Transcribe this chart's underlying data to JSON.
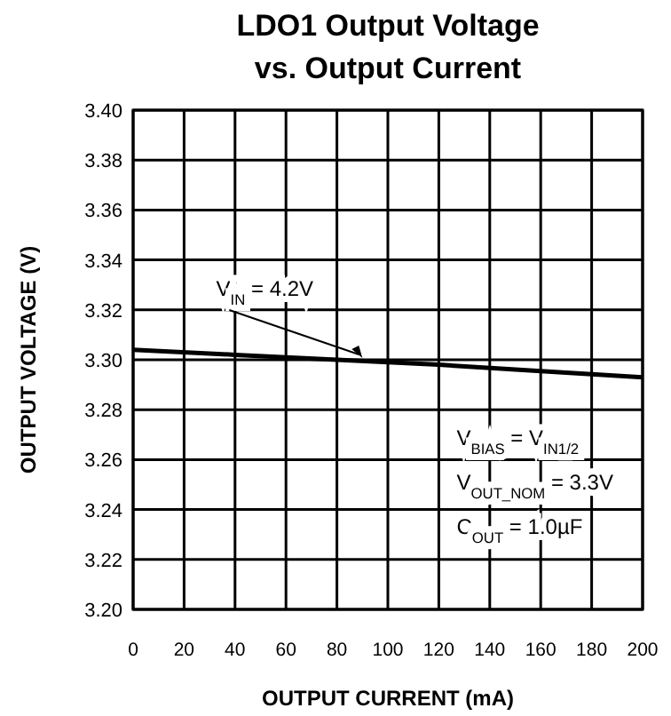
{
  "chart_data": {
    "type": "line",
    "title": "LDO1 Output Voltage\nvs. Output Current",
    "xlabel": "OUTPUT CURRENT (mA)",
    "ylabel": "OUTPUT VOLTAGE (V)",
    "x": [
      0,
      40,
      80,
      120,
      160,
      200
    ],
    "series": [
      {
        "color": "#000000",
        "values": [
          3.304,
          3.302,
          3.3,
          3.298,
          3.2955,
          3.293
        ]
      }
    ],
    "xlim": [
      0,
      200
    ],
    "xticks": [
      0,
      20,
      40,
      60,
      80,
      100,
      120,
      140,
      160,
      180,
      200
    ],
    "ylim": [
      3.2,
      3.4
    ],
    "yticks": [
      {
        "value": 3.2,
        "label": "3.20"
      },
      3.22,
      3.24,
      3.26,
      3.28,
      {
        "value": 3.3,
        "label": "3.30"
      },
      3.32,
      3.34,
      3.36,
      3.38,
      {
        "value": 3.4,
        "label": "3.40"
      }
    ],
    "grid": true,
    "marker": "none",
    "line_style": "solid",
    "annotations": [
      {
        "text": "V$_{IN}$ = 4.2V",
        "x": 90,
        "y": 3.3
      },
      "V$_{BIAS}$ = V$_{IN1/2}$",
      "V$_{OUT_NOM}$ = 3.3V",
      "C$_{OUT}$ = 1.0µF"
    ]
  }
}
